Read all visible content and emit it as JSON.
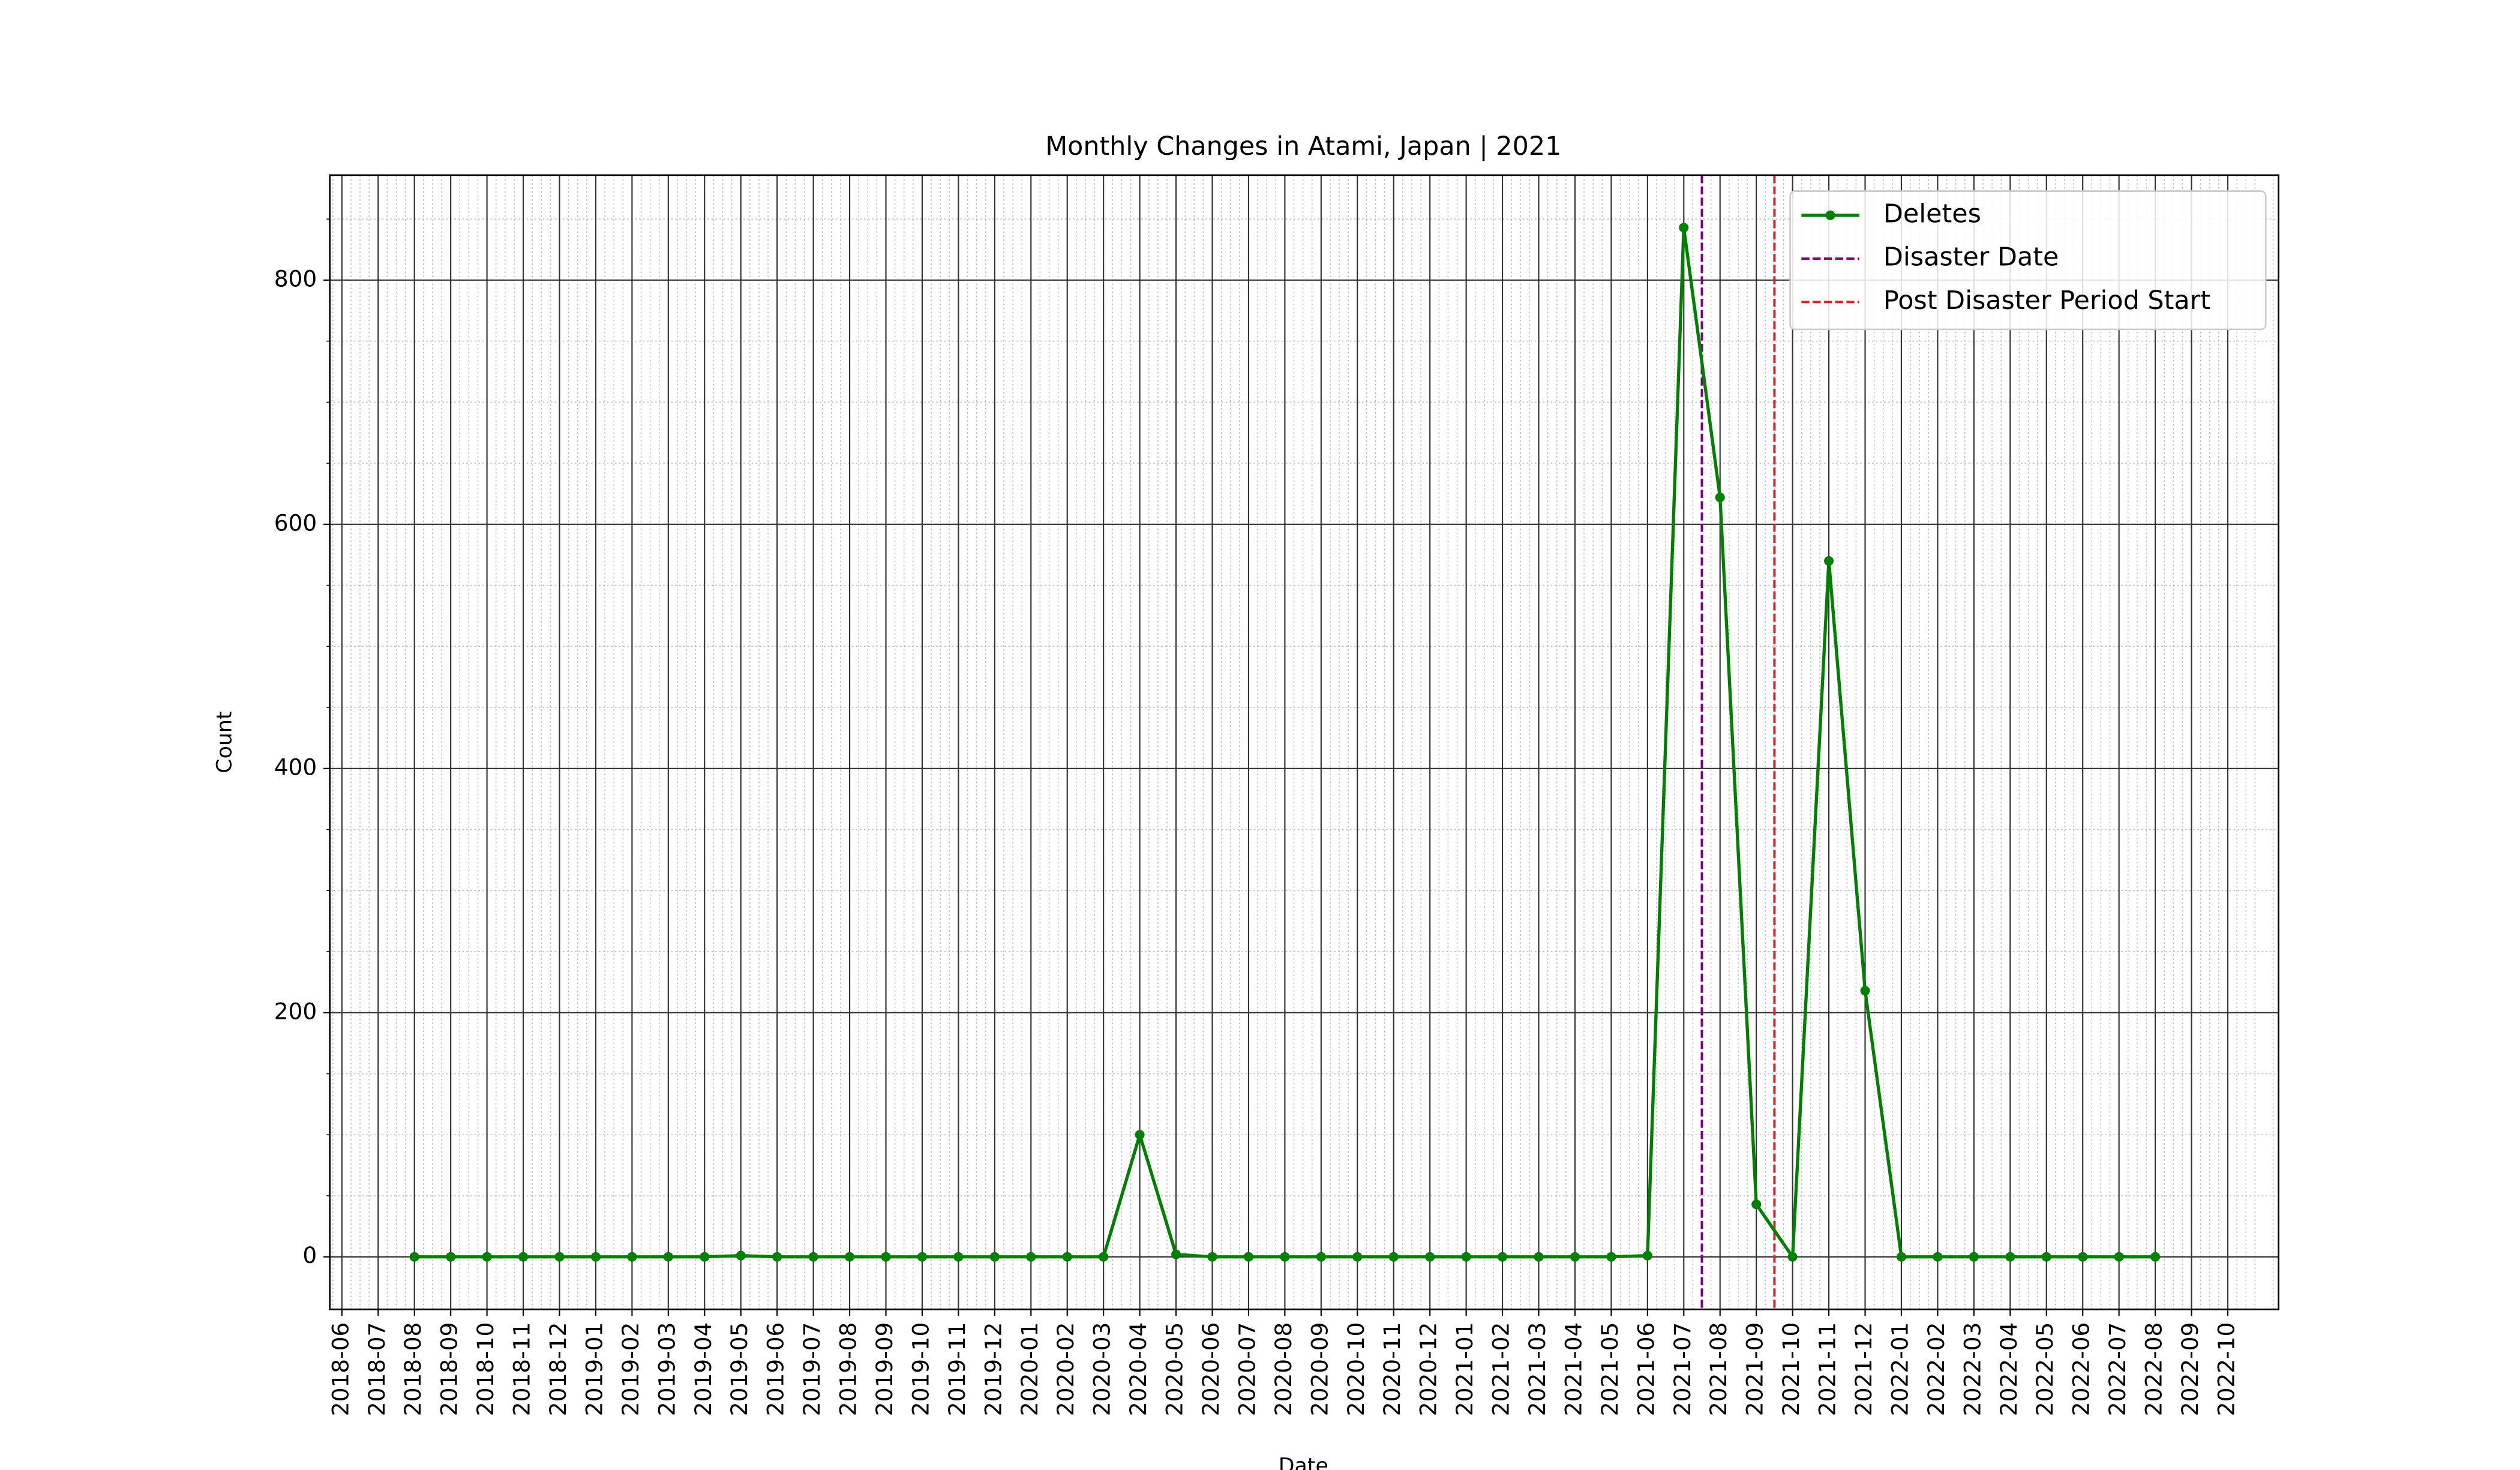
{
  "chart_data": {
    "type": "line",
    "title": "Monthly Changes in Atami, Japan | 2021",
    "xlabel": "Date",
    "ylabel": "Count",
    "x": [
      "2018-08",
      "2018-09",
      "2018-10",
      "2018-11",
      "2018-12",
      "2019-01",
      "2019-02",
      "2019-03",
      "2019-04",
      "2019-05",
      "2019-06",
      "2019-07",
      "2019-08",
      "2019-09",
      "2019-10",
      "2019-11",
      "2019-12",
      "2020-01",
      "2020-02",
      "2020-03",
      "2020-04",
      "2020-05",
      "2020-06",
      "2020-07",
      "2020-08",
      "2020-09",
      "2020-10",
      "2020-11",
      "2020-12",
      "2021-01",
      "2021-02",
      "2021-03",
      "2021-04",
      "2021-05",
      "2021-06",
      "2021-07",
      "2021-08",
      "2021-09",
      "2021-10",
      "2021-11",
      "2021-12",
      "2022-01",
      "2022-02",
      "2022-03",
      "2022-04",
      "2022-05",
      "2022-06",
      "2022-07",
      "2022-08"
    ],
    "series": [
      {
        "name": "Deletes",
        "color": "#008000",
        "values": [
          0,
          0,
          0,
          0,
          0,
          0,
          0,
          0,
          0,
          1,
          0,
          0,
          0,
          0,
          0,
          0,
          0,
          0,
          0,
          0,
          100,
          2,
          0,
          0,
          0,
          0,
          0,
          0,
          0,
          0,
          0,
          0,
          0,
          0,
          1,
          843,
          622,
          43,
          0,
          570,
          218,
          0,
          0,
          0,
          0,
          0,
          0,
          0,
          0
        ]
      }
    ],
    "vlines": [
      {
        "name": "Disaster Date",
        "x": "2021-07-16",
        "color": "#800080"
      },
      {
        "name": "Post Disaster Period Start",
        "x": "2021-09-16",
        "color": "#d62728"
      }
    ],
    "xlim": [
      "2018-05-21",
      "2022-11-13"
    ],
    "xticks": [
      "2018-06",
      "2018-07",
      "2018-08",
      "2018-09",
      "2018-10",
      "2018-11",
      "2018-12",
      "2019-01",
      "2019-02",
      "2019-03",
      "2019-04",
      "2019-05",
      "2019-06",
      "2019-07",
      "2019-08",
      "2019-09",
      "2019-10",
      "2019-11",
      "2019-12",
      "2020-01",
      "2020-02",
      "2020-03",
      "2020-04",
      "2020-05",
      "2020-06",
      "2020-07",
      "2020-08",
      "2020-09",
      "2020-10",
      "2020-11",
      "2020-12",
      "2021-01",
      "2021-02",
      "2021-03",
      "2021-04",
      "2021-05",
      "2021-06",
      "2021-07",
      "2021-08",
      "2021-09",
      "2021-10",
      "2021-11",
      "2021-12",
      "2022-01",
      "2022-02",
      "2022-03",
      "2022-04",
      "2022-05",
      "2022-06",
      "2022-07",
      "2022-08",
      "2022-09",
      "2022-10"
    ],
    "ylim": [
      -43,
      886
    ],
    "yticks": [
      0,
      200,
      400,
      600,
      800
    ],
    "grid": true,
    "legend": "upper right"
  }
}
